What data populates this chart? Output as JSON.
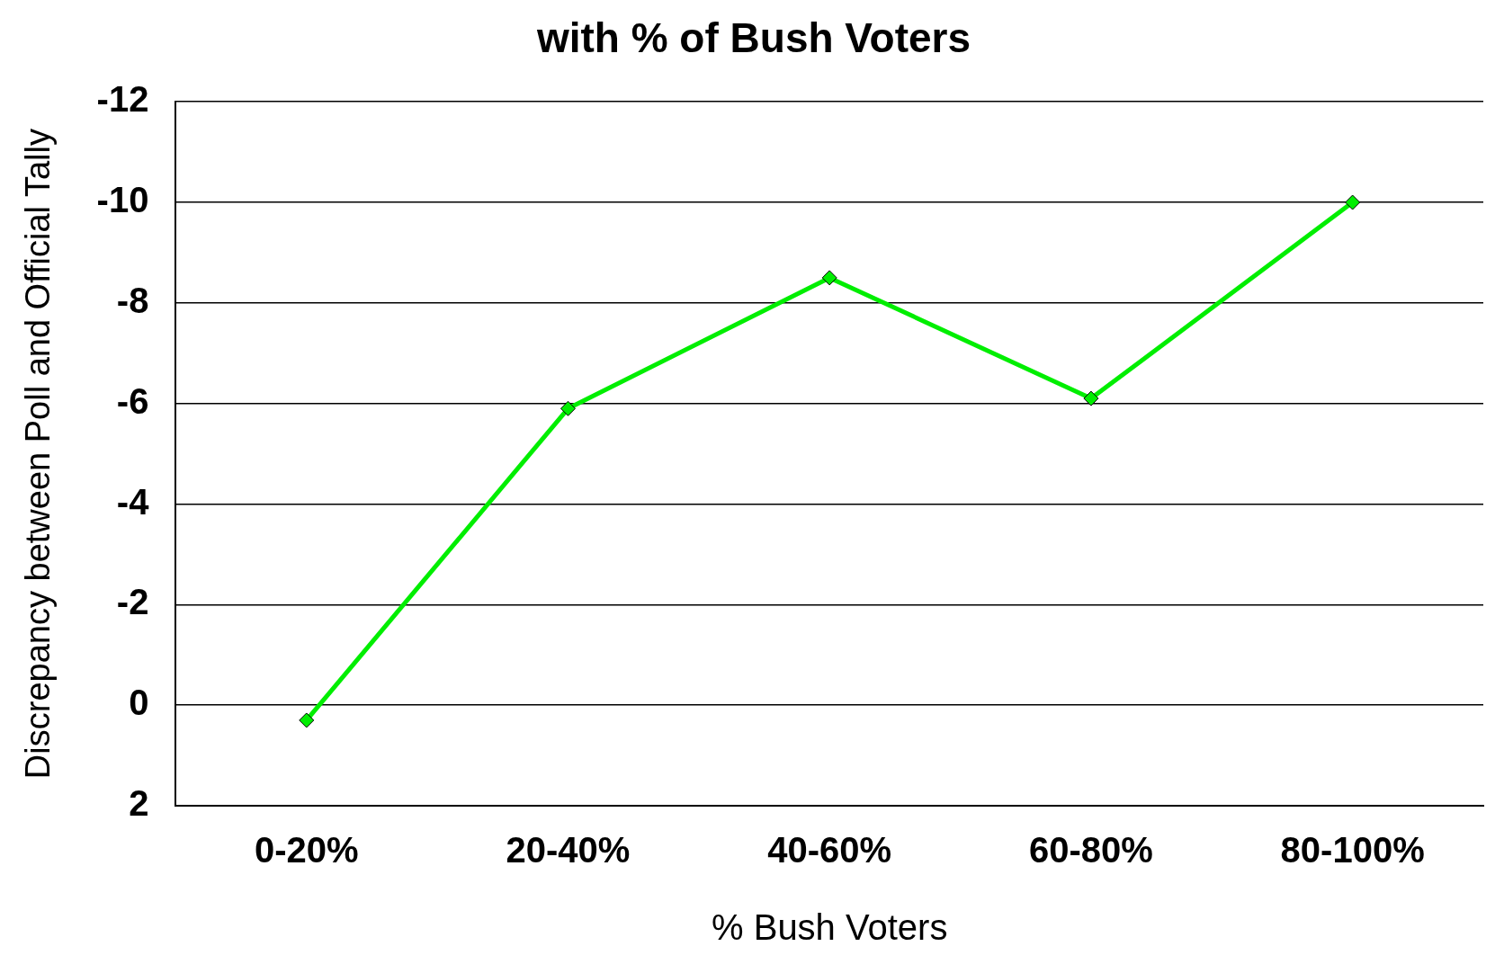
{
  "chart_data": {
    "type": "line",
    "title": "with % of Bush Voters",
    "xlabel": "% Bush Voters",
    "ylabel": "Discrepancy between Poll and Official Tally",
    "categories": [
      "0-20%",
      "20-40%",
      "40-60%",
      "60-80%",
      "80-100%"
    ],
    "series": [
      {
        "color": "#00ee00",
        "values": [
          0.3,
          -5.9,
          -8.5,
          -6.1,
          -10.0
        ]
      }
    ],
    "ylim": [
      2,
      -12
    ],
    "yticks": [
      -12,
      -10,
      -8,
      -6,
      -4,
      -2,
      0,
      2
    ],
    "grid": "y",
    "legend": false,
    "marker": "diamond",
    "line_style": "solid"
  }
}
